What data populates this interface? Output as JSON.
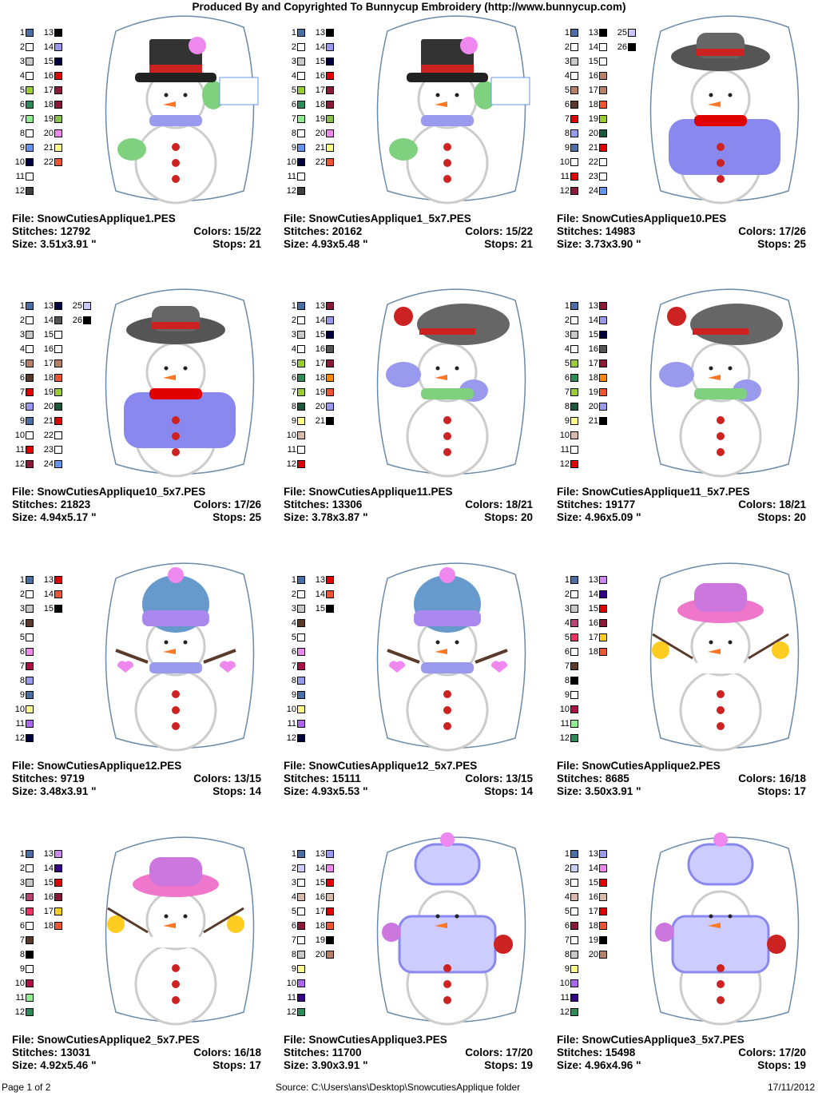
{
  "header": {
    "title": "Produced By and Copyrighted To Bunnycup Embroidery (http://www.bunnycup.com)"
  },
  "footer": {
    "page": "Page 1 of 2",
    "source": "Source: C:\\Users\\ans\\Desktop\\SnowcutiesApplique folder",
    "date": "17/11/2012"
  },
  "labels": {
    "file": "File: ",
    "stitches": "Stitches: ",
    "colors": "Colors: ",
    "size": "Size: ",
    "stops": "Stops: "
  },
  "designs": [
    {
      "file": "SnowCutiesApplique1.PES",
      "stitches": "12792",
      "colors": "15/22",
      "size": "3.51x3.91 \"",
      "stops": "21",
      "art": "tophat",
      "swatches": [
        "#4a6fa5",
        "#ffffff",
        "#c8c8c8",
        "#ffffff",
        "#9acd32",
        "#2e8b57",
        "#90ee90",
        "#ffffff",
        "#6495ed",
        "#000040",
        "#ffffff",
        "#404040",
        "#000000",
        "#9999ee",
        "#000040",
        "#e00000",
        "#8b1a3a",
        "#8b1a3a",
        "#8bc34a",
        "#ee88ee",
        "#ffff88",
        "#ee5533"
      ]
    },
    {
      "file": "SnowCutiesApplique1_5x7.PES",
      "stitches": "20162",
      "colors": "15/22",
      "size": "4.93x5.48 \"",
      "stops": "21",
      "art": "tophat",
      "swatches": [
        "#4a6fa5",
        "#ffffff",
        "#c8c8c8",
        "#ffffff",
        "#9acd32",
        "#2e8b57",
        "#90ee90",
        "#ffffff",
        "#6495ed",
        "#000040",
        "#ffffff",
        "#404040",
        "#000000",
        "#9999ee",
        "#000040",
        "#e00000",
        "#8b1a3a",
        "#8b1a3a",
        "#8bc34a",
        "#ee88ee",
        "#ffff88",
        "#ee5533"
      ]
    },
    {
      "file": "SnowCutiesApplique10.PES",
      "stitches": "14983",
      "colors": "17/26",
      "size": "3.73x3.90 \"",
      "stops": "25",
      "art": "purplecoat",
      "swatches": [
        "#4a6fa5",
        "#ffffff",
        "#c8c8c8",
        "#ffffff",
        "#b88068",
        "#5a3a2a",
        "#e00000",
        "#9999ee",
        "#4a6fa5",
        "#ffffff",
        "#e00000",
        "#8b1a3a",
        "#000000",
        "#ffffff",
        "#ffffff",
        "#b88068",
        "#b88068",
        "#ee5533",
        "#9acd32",
        "#1a5a3a",
        "#e00000",
        "#ffffff",
        "#ffffff",
        "#6495ed",
        "#c8c8ff",
        "#000000"
      ]
    },
    {
      "file": "SnowCutiesApplique10_5x7.PES",
      "stitches": "21823",
      "colors": "17/26",
      "size": "4.94x5.17 \"",
      "stops": "25",
      "art": "purplecoat",
      "swatches": [
        "#4a6fa5",
        "#ffffff",
        "#c8c8c8",
        "#ffffff",
        "#b88068",
        "#5a3a2a",
        "#e00000",
        "#9999ee",
        "#4a6fa5",
        "#ffffff",
        "#e00000",
        "#8b1a3a",
        "#000040",
        "#555555",
        "#ffffff",
        "#ffffff",
        "#b88068",
        "#ee5533",
        "#9acd32",
        "#1a5a3a",
        "#e00000",
        "#ffffff",
        "#ffffff",
        "#6495ed",
        "#c8c8ff",
        "#000000"
      ]
    },
    {
      "file": "SnowCutiesApplique11.PES",
      "stitches": "13306",
      "colors": "18/21",
      "size": "3.78x3.87 \"",
      "stops": "20",
      "art": "greenscarf",
      "swatches": [
        "#4a6fa5",
        "#ffffff",
        "#c8c8c8",
        "#ffffff",
        "#9acd32",
        "#2e8b57",
        "#9acd32",
        "#1a5a3a",
        "#ffff88",
        "#d8b8a8",
        "#ffffff",
        "#e00000",
        "#8b1a3a",
        "#9999ee",
        "#000040",
        "#555555",
        "#8b1a3a",
        "#ff8800",
        "#ee5533",
        "#9999ee",
        "#000000"
      ]
    },
    {
      "file": "SnowCutiesApplique11_5x7.PES",
      "stitches": "19177",
      "colors": "18/21",
      "size": "4.96x5.09 \"",
      "stops": "20",
      "art": "greenscarf",
      "swatches": [
        "#4a6fa5",
        "#ffffff",
        "#c8c8c8",
        "#ffffff",
        "#9acd32",
        "#2e8b57",
        "#9acd32",
        "#1a5a3a",
        "#ffff88",
        "#d8b8a8",
        "#ffffff",
        "#e00000",
        "#8b1a3a",
        "#9999ee",
        "#000040",
        "#555555",
        "#8b1a3a",
        "#ff8800",
        "#ee5533",
        "#9999ee",
        "#000000"
      ]
    },
    {
      "file": "SnowCutiesApplique12.PES",
      "stitches": "9719",
      "colors": "13/15",
      "size": "3.48x3.91 \"",
      "stops": "14",
      "art": "beanie",
      "swatches": [
        "#4a6fa5",
        "#ffffff",
        "#c8c8c8",
        "#5a3a2a",
        "#ffffff",
        "#ee88ee",
        "#aa1144",
        "#9999ee",
        "#4a6fa5",
        "#ffff88",
        "#aa66ee",
        "#000040",
        "#e00000",
        "#ee5533",
        "#000000"
      ]
    },
    {
      "file": "SnowCutiesApplique12_5x7.PES",
      "stitches": "15111",
      "colors": "13/15",
      "size": "4.93x5.53 \"",
      "stops": "14",
      "art": "beanie",
      "swatches": [
        "#4a6fa5",
        "#ffffff",
        "#c8c8c8",
        "#5a3a2a",
        "#ffffff",
        "#ee88ee",
        "#aa1144",
        "#9999ee",
        "#4a6fa5",
        "#ffff88",
        "#aa66ee",
        "#000040",
        "#e00000",
        "#ee5533",
        "#000000"
      ]
    },
    {
      "file": "SnowCutiesApplique2.PES",
      "stitches": "8685",
      "colors": "16/18",
      "size": "3.50x3.91 \"",
      "stops": "17",
      "art": "pinkhat",
      "swatches": [
        "#4a6fa5",
        "#ffffff",
        "#c8c8c8",
        "#bb4477",
        "#ee3366",
        "#ffffff",
        "#5a3a2a",
        "#000000",
        "#ffffff",
        "#aa1144",
        "#90ee90",
        "#2e8b57",
        "#cc88ee",
        "#330088",
        "#e00000",
        "#8b1a3a",
        "#ffcc22",
        "#ee5533"
      ]
    },
    {
      "file": "SnowCutiesApplique2_5x7.PES",
      "stitches": "13031",
      "colors": "16/18",
      "size": "4.92x5.46 \"",
      "stops": "17",
      "art": "pinkhat",
      "swatches": [
        "#4a6fa5",
        "#ffffff",
        "#c8c8c8",
        "#bb4477",
        "#ee3366",
        "#ffffff",
        "#5a3a2a",
        "#000000",
        "#ffffff",
        "#aa1144",
        "#90ee90",
        "#2e8b57",
        "#cc88ee",
        "#330088",
        "#e00000",
        "#8b1a3a",
        "#ffcc22",
        "#ee5533"
      ]
    },
    {
      "file": "SnowCutiesApplique3.PES",
      "stitches": "11700",
      "colors": "17/20",
      "size": "3.90x3.91 \"",
      "stops": "19",
      "art": "hooded",
      "swatches": [
        "#4a6fa5",
        "#ccccff",
        "#ffffff",
        "#d8b8a8",
        "#ffffff",
        "#8b1a3a",
        "#ffffff",
        "#c8c8c8",
        "#ffff88",
        "#aa66ee",
        "#330088",
        "#2e8b57",
        "#9999ee",
        "#ee88ee",
        "#e00000",
        "#d8b8a8",
        "#e00000",
        "#ee5533",
        "#000000",
        "#b88068"
      ]
    },
    {
      "file": "SnowCutiesApplique3_5x7.PES",
      "stitches": "15498",
      "colors": "17/20",
      "size": "4.96x4.96 \"",
      "stops": "19",
      "art": "hooded",
      "swatches": [
        "#4a6fa5",
        "#ccccff",
        "#ffffff",
        "#d8b8a8",
        "#ffffff",
        "#8b1a3a",
        "#ffffff",
        "#c8c8c8",
        "#ffff88",
        "#aa66ee",
        "#330088",
        "#2e8b57",
        "#9999ee",
        "#ee88ee",
        "#e00000",
        "#d8b8a8",
        "#e00000",
        "#ee5533",
        "#000000",
        "#b88068"
      ]
    }
  ]
}
